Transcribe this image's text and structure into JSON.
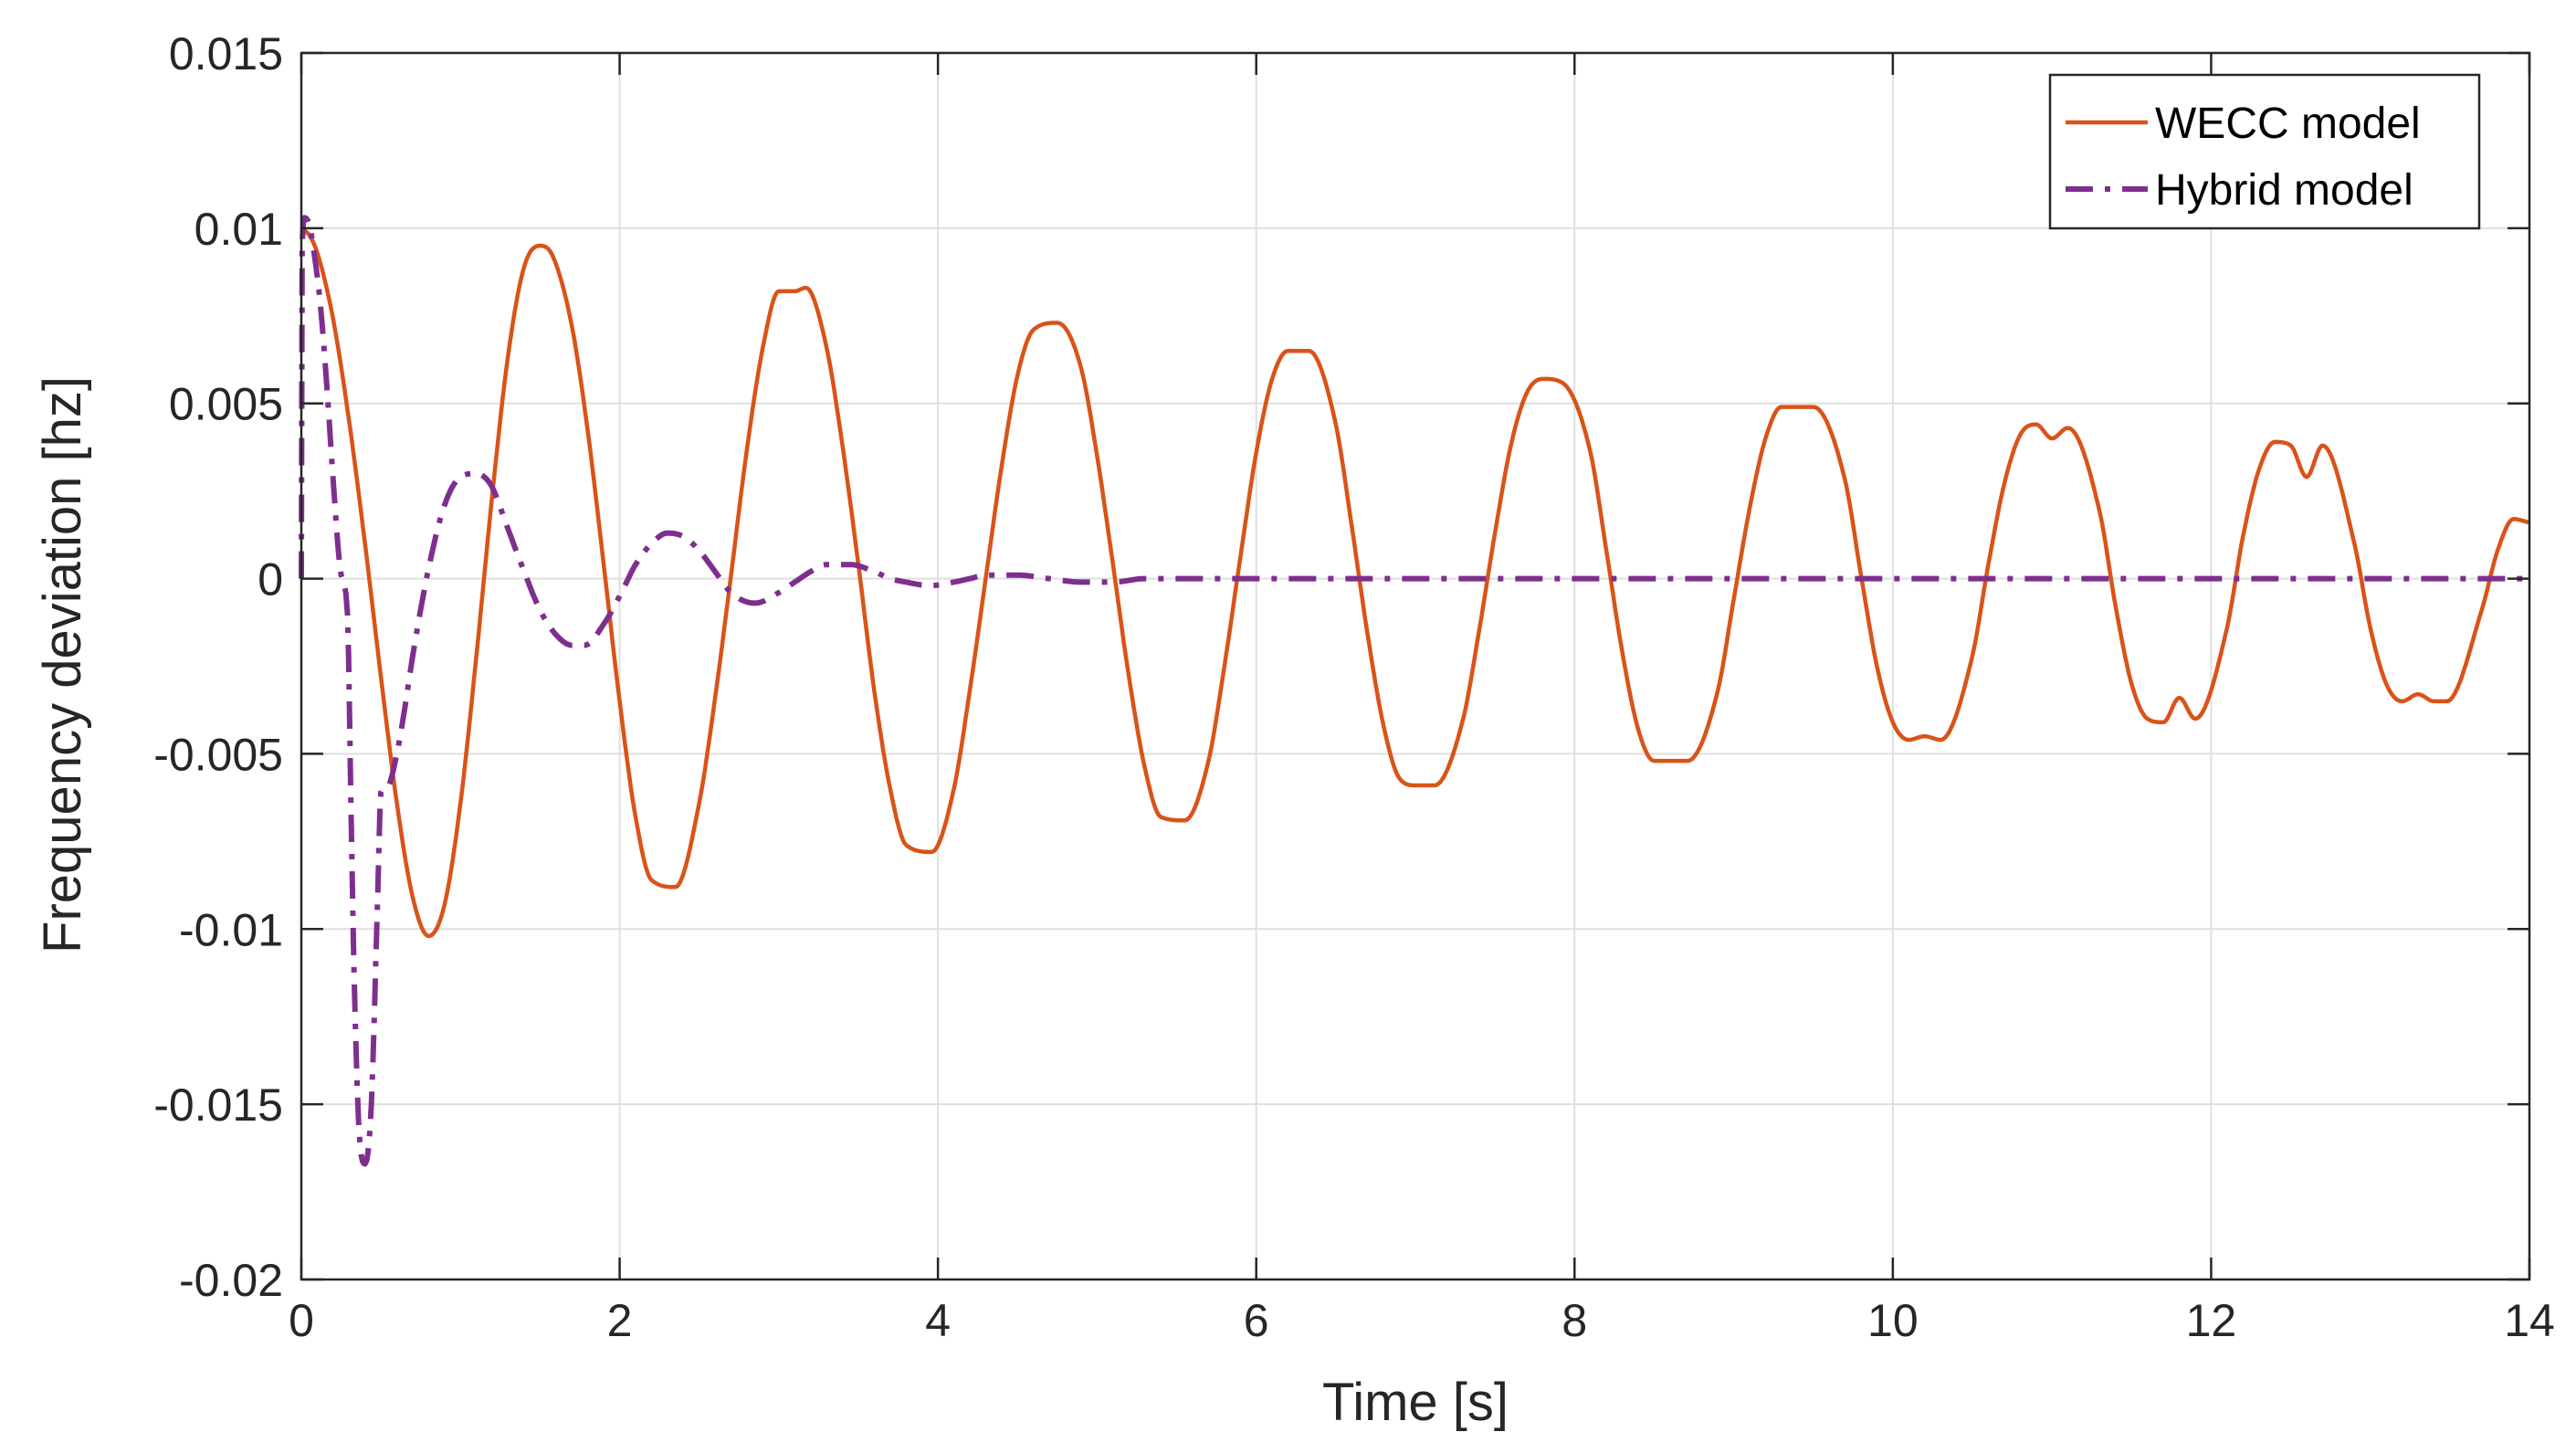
{
  "chart_data": {
    "type": "line",
    "title": "",
    "xlabel": "Time [s]",
    "ylabel": "Frequency deviation [hz]",
    "xlim": [
      0,
      14
    ],
    "ylim": [
      -0.02,
      0.015
    ],
    "xticks": [
      0,
      2,
      4,
      6,
      8,
      10,
      12,
      14
    ],
    "xtick_labels": [
      "0",
      "2",
      "4",
      "6",
      "8",
      "10",
      "12",
      "14"
    ],
    "yticks": [
      0.015,
      0.01,
      0.005,
      0,
      -0.005,
      -0.01,
      -0.015,
      -0.02
    ],
    "ytick_labels": [
      "0.015",
      "0.01",
      "0.005",
      "0",
      "-0.005",
      "-0.01",
      "-0.015",
      "-0.02"
    ],
    "grid": true,
    "legend_location": "top-right",
    "colors": {
      "wecc": "#D95319",
      "hybrid": "#7E2F8E",
      "axis": "#262626",
      "grid": "#DFDFDF"
    },
    "series": [
      {
        "name": "WECC model",
        "style": "solid",
        "color": "#D95319",
        "x": [
          0,
          0.05,
          0.1,
          0.2,
          0.3,
          0.4,
          0.5,
          0.6,
          0.7,
          0.8,
          0.9,
          1.0,
          1.1,
          1.2,
          1.3,
          1.4,
          1.5,
          1.58,
          1.7,
          1.8,
          1.9,
          2.0,
          2.1,
          2.2,
          2.35,
          2.5,
          2.6,
          2.7,
          2.8,
          2.9,
          3.0,
          3.1,
          3.17,
          3.3,
          3.4,
          3.5,
          3.6,
          3.7,
          3.8,
          3.96,
          4.1,
          4.2,
          4.3,
          4.4,
          4.5,
          4.6,
          4.75,
          4.9,
          5.0,
          5.1,
          5.2,
          5.3,
          5.4,
          5.55,
          5.7,
          5.8,
          5.9,
          6.0,
          6.1,
          6.2,
          6.33,
          6.5,
          6.6,
          6.7,
          6.8,
          6.9,
          7.0,
          7.12,
          7.3,
          7.4,
          7.5,
          7.6,
          7.7,
          7.8,
          7.92,
          8.1,
          8.2,
          8.3,
          8.4,
          8.5,
          8.6,
          8.71,
          8.9,
          9.0,
          9.1,
          9.2,
          9.3,
          9.4,
          9.5,
          9.7,
          9.8,
          9.9,
          10.0,
          10.1,
          10.2,
          10.3,
          10.5,
          10.6,
          10.7,
          10.8,
          10.9,
          11.0,
          11.1,
          11.3,
          11.4,
          11.5,
          11.6,
          11.7,
          11.8,
          11.9,
          12.1,
          12.2,
          12.3,
          12.4,
          12.5,
          12.6,
          12.7,
          12.9,
          13.0,
          13.1,
          13.2,
          13.3,
          13.4,
          13.48,
          13.7,
          13.8,
          13.9,
          14.0
        ],
        "y": [
          0.01,
          0.0098,
          0.0093,
          0.0074,
          0.0045,
          0.001,
          -0.0028,
          -0.0064,
          -0.0091,
          -0.0102,
          -0.0093,
          -0.0064,
          -0.0022,
          0.0024,
          0.0064,
          0.0089,
          0.0095,
          0.0092,
          0.0072,
          0.0042,
          0.0004,
          -0.0035,
          -0.0068,
          -0.0086,
          -0.0088,
          -0.0064,
          -0.0034,
          0.0001,
          0.0037,
          0.0066,
          0.0082,
          0.0082,
          0.0083,
          0.0066,
          0.0038,
          0.0004,
          -0.0032,
          -0.006,
          -0.0076,
          -0.0078,
          -0.006,
          -0.0032,
          0.0,
          0.0032,
          0.0058,
          0.0071,
          0.0073,
          0.006,
          0.0035,
          0.0004,
          -0.0028,
          -0.0054,
          -0.0068,
          -0.0069,
          -0.0052,
          -0.0025,
          0.0006,
          0.0036,
          0.0057,
          0.0065,
          0.0065,
          0.0044,
          0.0015,
          -0.0016,
          -0.0042,
          -0.0057,
          -0.0059,
          -0.0059,
          -0.004,
          -0.0015,
          0.0013,
          0.0038,
          0.0053,
          0.0057,
          0.0056,
          0.0036,
          0.0008,
          -0.0021,
          -0.0043,
          -0.0052,
          -0.0052,
          -0.0052,
          -0.0032,
          -0.0006,
          0.002,
          0.004,
          0.0049,
          0.0049,
          0.0049,
          0.0028,
          0.0001,
          -0.0025,
          -0.0041,
          -0.0046,
          -0.0045,
          -0.0046,
          -0.0022,
          0.0004,
          0.0027,
          0.0041,
          0.0044,
          0.004,
          0.0043,
          0.0019,
          -0.0008,
          -0.003,
          -0.004,
          -0.0041,
          -0.0034,
          -0.004,
          -0.0014,
          0.0012,
          0.0031,
          0.0039,
          0.0038,
          0.0029,
          0.0038,
          0.001,
          -0.0014,
          -0.003,
          -0.0035,
          -0.0033,
          -0.0035,
          -0.0035,
          -0.0009,
          0.0008,
          0.0017,
          0.0016
        ]
      },
      {
        "name": "Hybrid model",
        "style": "dashdot",
        "color": "#7E2F8E",
        "x": [
          0,
          0.005,
          0.02,
          0.05,
          0.08,
          0.12,
          0.16,
          0.2,
          0.25,
          0.29,
          0.31,
          0.33,
          0.36,
          0.4,
          0.44,
          0.48,
          0.5,
          0.52,
          0.55,
          0.6,
          0.65,
          0.7,
          0.8,
          0.9,
          1.0,
          1.1,
          1.15,
          1.2,
          1.3,
          1.4,
          1.5,
          1.6,
          1.7,
          1.78,
          1.9,
          2.0,
          2.1,
          2.2,
          2.3,
          2.4,
          2.5,
          2.6,
          2.7,
          2.85,
          3.0,
          3.1,
          3.2,
          3.3,
          3.45,
          3.6,
          3.7,
          3.8,
          3.95,
          4.1,
          4.2,
          4.3,
          4.5,
          4.7,
          4.9,
          5.1,
          5.3,
          5.6,
          6.0,
          6.5,
          7.0,
          8.0,
          9.0,
          10.0,
          11.0,
          12.0,
          13.0,
          14.0
        ],
        "y": [
          0,
          0.0095,
          0.0103,
          0.0101,
          0.0093,
          0.0078,
          0.0055,
          0.0028,
          0.0001,
          -0.001,
          -0.006,
          -0.011,
          -0.0155,
          -0.0167,
          -0.015,
          -0.009,
          -0.0061,
          -0.006,
          -0.0059,
          -0.005,
          -0.0037,
          -0.0022,
          0.0003,
          0.0021,
          0.0029,
          0.003,
          0.0029,
          0.0026,
          0.0014,
          0.0002,
          -0.0009,
          -0.0016,
          -0.0019,
          -0.0019,
          -0.0013,
          -0.0005,
          0.0004,
          0.001,
          0.0013,
          0.0012,
          0.0008,
          0.0002,
          -0.0004,
          -0.0007,
          -0.0004,
          -0.0001,
          0.0002,
          0.0004,
          0.0004,
          0.0002,
          0.0,
          -0.0001,
          -0.0002,
          -0.0001,
          0.0,
          0.0001,
          0.0001,
          0.0,
          -0.0001,
          -0.0001,
          0.0,
          0.0,
          0.0,
          0.0,
          0.0,
          0.0,
          0.0,
          0.0,
          0.0,
          0.0,
          0.0,
          0.0
        ]
      }
    ]
  }
}
